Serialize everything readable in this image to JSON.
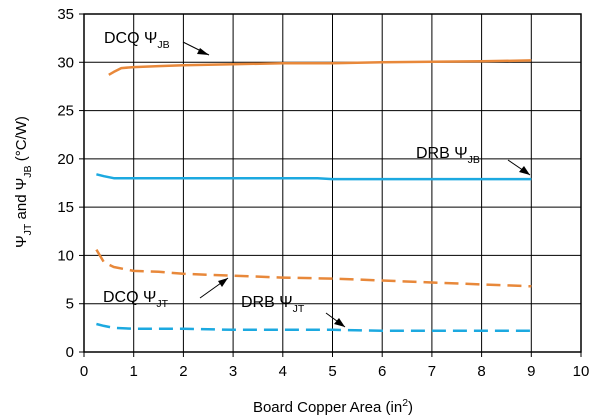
{
  "chart_data": {
    "type": "line",
    "xlabel": "Board Copper Area (in2)",
    "xlabel_parts": {
      "main": "Board Copper Area (in",
      "sup": "2",
      "end": ")"
    },
    "ylabel": "ΨJT and ΨJB (°C/W)",
    "ylabel_parts": {
      "psi1": "Ψ",
      "sub1": "JT",
      "mid": " and ",
      "psi2": "Ψ",
      "sub2": "JB",
      "end": " (°C/W)"
    },
    "xlim": [
      0,
      10
    ],
    "ylim": [
      0,
      35
    ],
    "x_ticks": [
      0,
      1,
      2,
      3,
      4,
      5,
      6,
      7,
      8,
      9,
      10
    ],
    "y_ticks": [
      0,
      5,
      10,
      15,
      20,
      25,
      30,
      35
    ],
    "grid": true,
    "legend": "none (inline annotations with arrows)",
    "colors": {
      "dcq": "#e8883a",
      "drb": "#1ca9e0"
    },
    "series": [
      {
        "name": "DCQ ΨJB",
        "label_main": "DCQ Ψ",
        "label_sub": "JB",
        "color": "#e8883a",
        "style": "solid",
        "x": [
          0.5,
          0.6,
          0.75,
          1.0,
          1.5,
          2.0,
          3.0,
          4.0,
          5.0,
          6.0,
          7.0,
          8.0,
          9.0
        ],
        "y": [
          28.7,
          29.0,
          29.4,
          29.5,
          29.6,
          29.7,
          29.8,
          29.9,
          29.9,
          30.0,
          30.05,
          30.1,
          30.2
        ]
      },
      {
        "name": "DRB ΨJB",
        "label_main": "DRB Ψ",
        "label_sub": "JB",
        "color": "#1ca9e0",
        "style": "solid",
        "x": [
          0.25,
          0.4,
          0.6,
          1.0,
          2.0,
          3.0,
          4.0,
          4.7,
          5.0,
          6.0,
          7.0,
          8.0,
          9.0
        ],
        "y": [
          18.4,
          18.2,
          18.0,
          18.0,
          18.0,
          18.0,
          18.0,
          18.0,
          17.9,
          17.9,
          17.9,
          17.9,
          17.9
        ]
      },
      {
        "name": "DCQ ΨJT",
        "label_main": "DCQ Ψ",
        "label_sub": "JT",
        "color": "#e8883a",
        "style": "dashed",
        "x": [
          0.25,
          0.4,
          0.6,
          1.0,
          1.5,
          2.0,
          3.0,
          4.0,
          5.0,
          6.0,
          7.0,
          8.0,
          9.0
        ],
        "y": [
          10.6,
          9.3,
          8.8,
          8.4,
          8.3,
          8.1,
          7.9,
          7.7,
          7.6,
          7.4,
          7.2,
          7.0,
          6.8
        ]
      },
      {
        "name": "DRB ΨJT",
        "label_main": "DRB Ψ",
        "label_sub": "JT",
        "color": "#1ca9e0",
        "style": "dashed",
        "x": [
          0.25,
          0.4,
          0.6,
          1.0,
          2.0,
          3.0,
          4.0,
          5.0,
          6.0,
          7.0,
          8.0,
          9.0
        ],
        "y": [
          2.9,
          2.7,
          2.5,
          2.4,
          2.4,
          2.3,
          2.3,
          2.3,
          2.2,
          2.2,
          2.2,
          2.2
        ]
      }
    ]
  }
}
